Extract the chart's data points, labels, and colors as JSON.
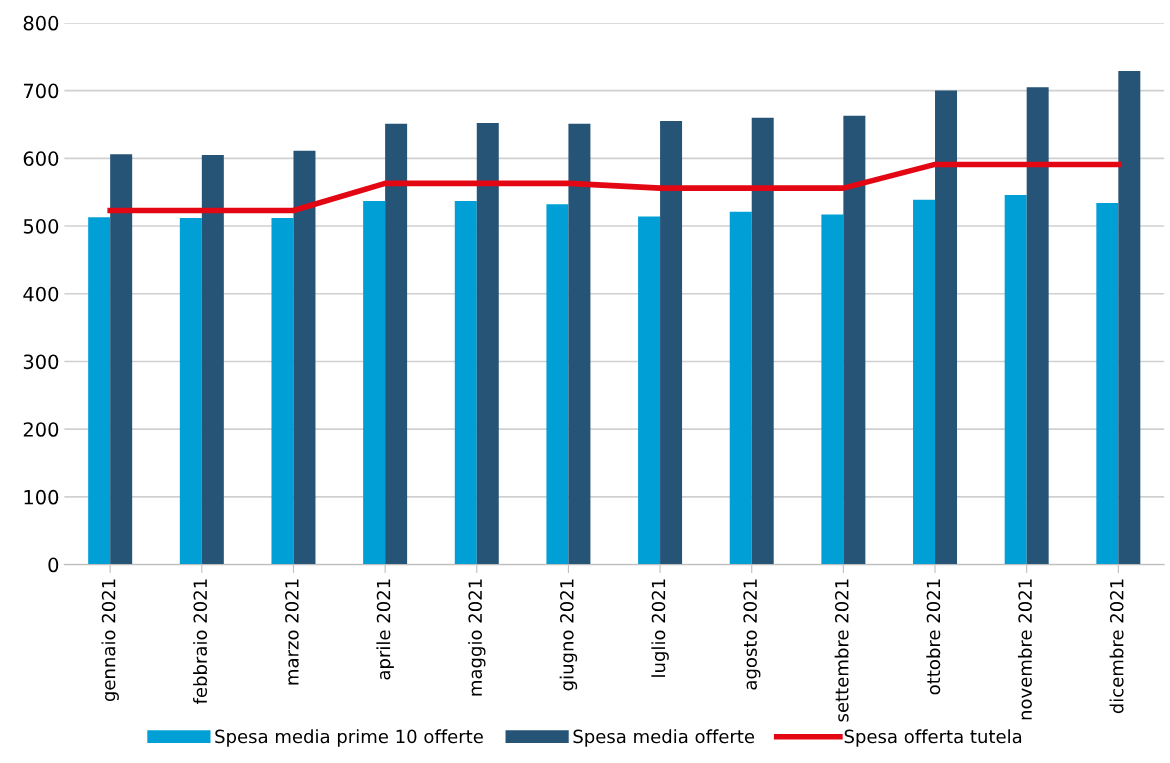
{
  "chart_data": {
    "type": "bar",
    "categories": [
      "gennaio 2021",
      "febbraio 2021",
      "marzo 2021",
      "aprile 2021",
      "maggio 2021",
      "giugno 2021",
      "luglio 2021",
      "agosto 2021",
      "settembre 2021",
      "ottobre 2021",
      "novembre 2021",
      "dicembre 2021"
    ],
    "series": [
      {
        "name": "Spesa media prime 10 offerte",
        "color": "#00a0d6",
        "values": [
          513,
          512,
          512,
          537,
          537,
          532,
          514,
          521,
          517,
          539,
          546,
          534
        ]
      },
      {
        "name": "Spesa media offerte",
        "color": "#255476",
        "values": [
          606,
          605,
          611,
          651,
          652,
          651,
          655,
          660,
          663,
          700,
          705,
          729
        ]
      },
      {
        "name": "Spesa offerta tutela",
        "color": "#e30613",
        "type": "line",
        "values": [
          523,
          523,
          523,
          563,
          563,
          563,
          556,
          556,
          556,
          591,
          591,
          591
        ]
      }
    ],
    "ylim": [
      0,
      800
    ],
    "yticks": [
      0,
      100,
      200,
      300,
      400,
      500,
      600,
      700,
      800
    ],
    "grid": "y",
    "legend": "bottom",
    "marker": "none",
    "line_style": "solid"
  }
}
